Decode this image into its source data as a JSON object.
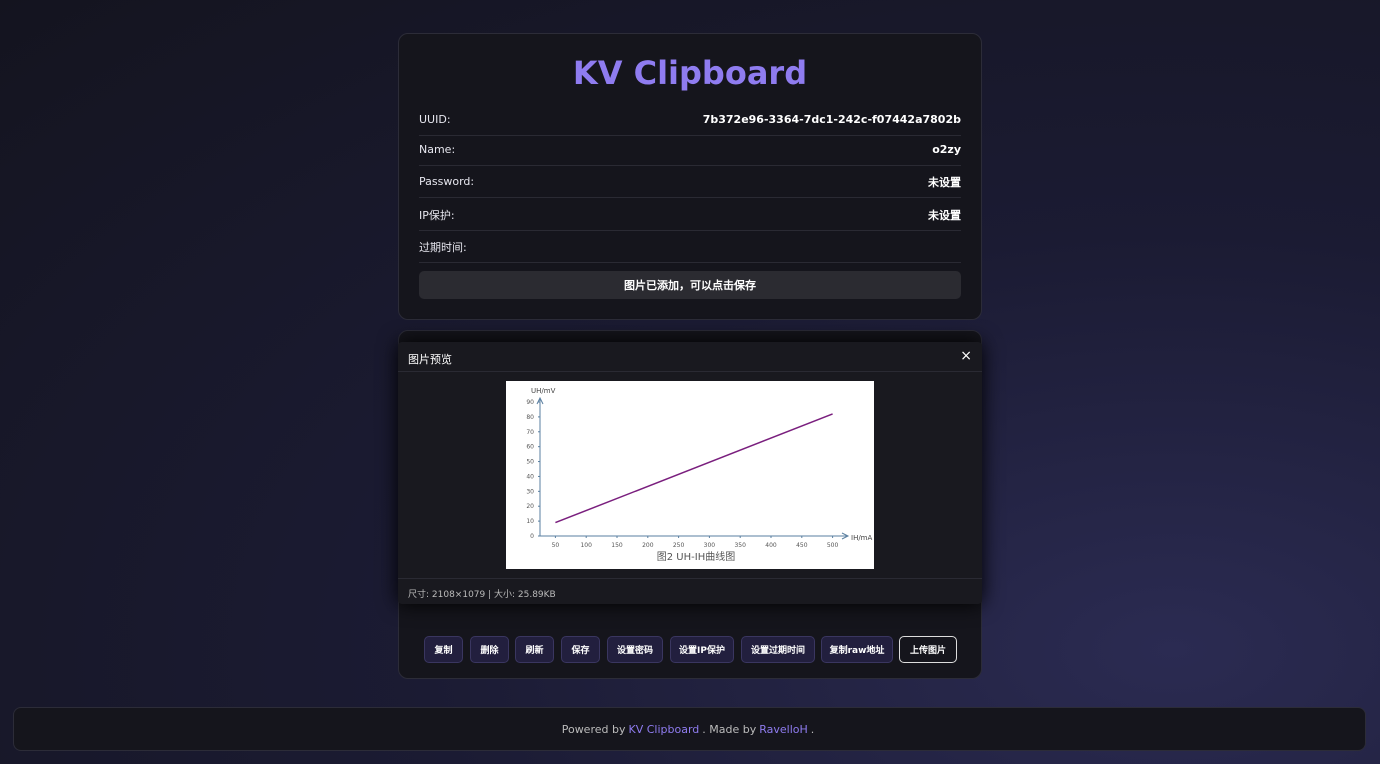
{
  "header": {
    "title": "KV Clipboard"
  },
  "info": {
    "rows": [
      {
        "label": "UUID:",
        "value": "7b372e96-3364-7dc1-242c-f07442a7802b"
      },
      {
        "label": "Name:",
        "value": "o2zy"
      },
      {
        "label": "Password:",
        "value": "未设置"
      },
      {
        "label": "IP保护:",
        "value": "未设置"
      },
      {
        "label": "过期时间:"
      }
    ]
  },
  "status": "图片已添加，可以点击保存",
  "preview": {
    "title": "图片预览",
    "close": "×",
    "meta": "尺寸: 2108×1079 | 大小: 25.89KB",
    "image": {
      "chart_data": {
        "type": "line",
        "title": "图2 UH-IH曲线图",
        "ylabel": "UH/mV",
        "xlabel": "IH/mA",
        "x": [
          50,
          500
        ],
        "values": [
          9,
          82
        ],
        "color": "#7a1f7e",
        "xlim": [
          25,
          525
        ],
        "xticks": [
          50,
          100,
          150,
          200,
          250,
          300,
          350,
          400,
          450,
          500
        ],
        "ylim": [
          0,
          90
        ],
        "yticks": [
          0,
          10,
          20,
          30,
          40,
          50,
          60,
          70,
          80,
          90
        ],
        "grid": false
      }
    }
  },
  "actions": [
    "复制",
    "删除",
    "刷新",
    "保存",
    "设置密码",
    "设置IP保护",
    "设置过期时间",
    "复制raw地址",
    "上传图片"
  ],
  "footer": {
    "parts": [
      "Powered by",
      "KV Clipboard",
      ". Made by",
      "RavelloH",
      "."
    ]
  }
}
